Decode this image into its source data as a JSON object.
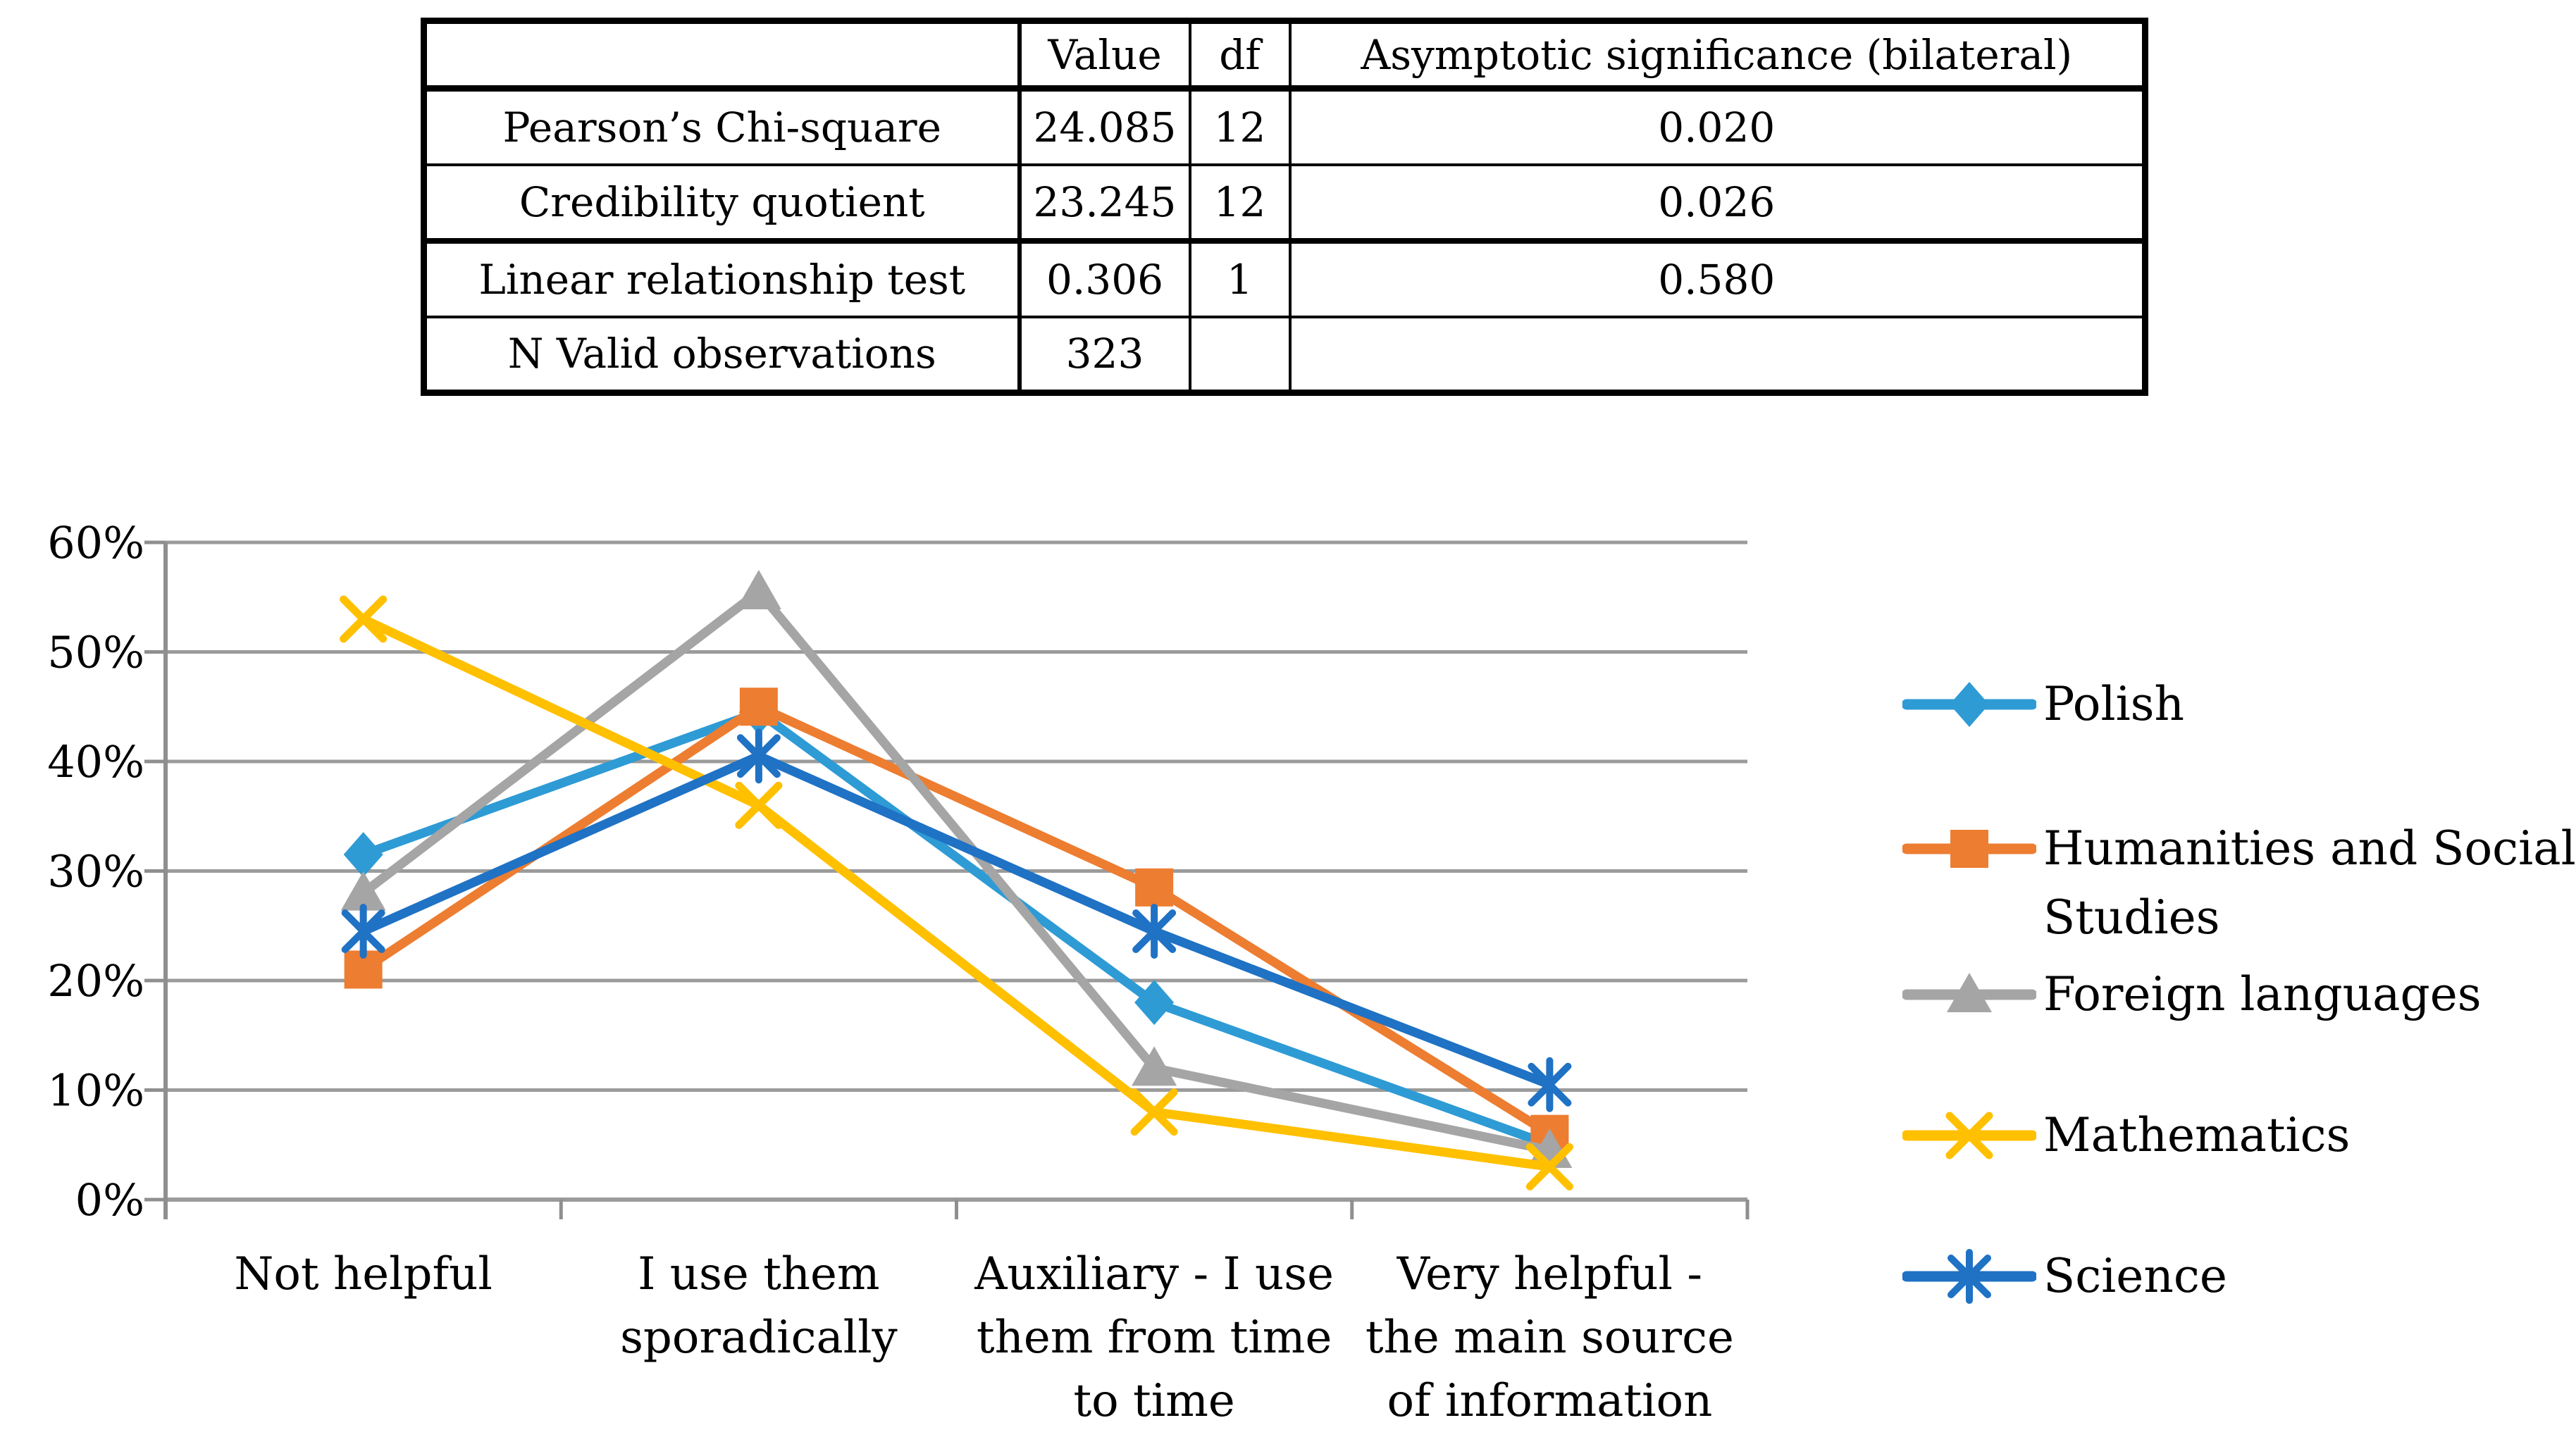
{
  "table": {
    "headers": [
      "",
      "Value",
      "df",
      "Asymptotic significance (bilateral)"
    ],
    "rows": [
      {
        "label": "Pearson’s Chi-square",
        "value": "24.085",
        "df": "12",
        "sig": "0.020"
      },
      {
        "label": "Credibility quotient",
        "value": "23.245",
        "df": "12",
        "sig": "0.026"
      },
      {
        "label": "Linear relationship test",
        "value": "0.306",
        "df": "1",
        "sig": "0.580"
      },
      {
        "label": "N Valid observations",
        "value": "323",
        "df": "",
        "sig": ""
      }
    ]
  },
  "chart_data": {
    "type": "line",
    "categories": [
      "Not helpful",
      "I use them sporadically",
      "Auxiliary - I use them from time to time",
      "Very helpful - the main source of information"
    ],
    "categories_wrapped": [
      [
        "Not helpful"
      ],
      [
        "I use them",
        "sporadically"
      ],
      [
        "Auxiliary - I use",
        "them from time",
        "to time"
      ],
      [
        "Very helpful -",
        "the main source",
        "of information"
      ]
    ],
    "series": [
      {
        "name": "Polish",
        "marker": "diamond",
        "color": "#2E9BD5",
        "values": [
          31.5,
          44.5,
          18,
          5
        ]
      },
      {
        "name": "Humanities and Social Studies",
        "marker": "square",
        "color": "#ED7D31",
        "values": [
          21,
          45,
          28.5,
          6
        ]
      },
      {
        "name": "Foreign languages",
        "marker": "triangle",
        "color": "#A5A5A5",
        "values": [
          28,
          55.5,
          12,
          4.5
        ]
      },
      {
        "name": "Mathematics",
        "marker": "x",
        "color": "#FFC000",
        "values": [
          53,
          36,
          8,
          3
        ]
      },
      {
        "name": "Science",
        "marker": "asterisk",
        "color": "#1F72C4",
        "values": [
          24.5,
          40.5,
          24.5,
          10.5
        ]
      }
    ],
    "legend_wrapped": [
      [
        "Polish"
      ],
      [
        "Humanities and Social",
        "Studies"
      ],
      [
        "Foreign languages"
      ],
      [
        "Mathematics"
      ],
      [
        "Science"
      ]
    ],
    "ylim": [
      0,
      60
    ],
    "ytick_step": 10,
    "ytick_labels": [
      "0%",
      "10%",
      "20%",
      "30%",
      "40%",
      "50%",
      "60%"
    ],
    "grid": true,
    "legend_position": "right"
  },
  "colors": {
    "gridline": "#9B9B9B",
    "axis": "#8F8F8F",
    "text": "#000000",
    "background": "#FFFFFF"
  }
}
